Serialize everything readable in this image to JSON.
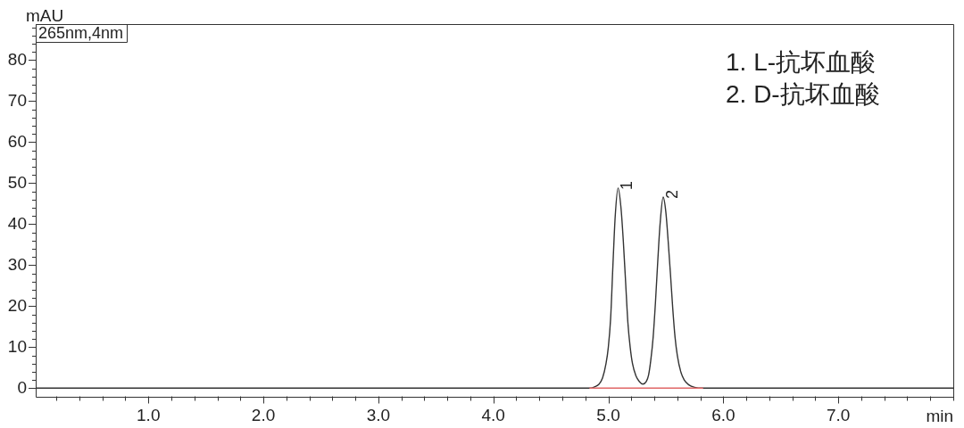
{
  "chart_data": {
    "type": "line",
    "xlabel": "min",
    "ylabel": "mAU",
    "xlim": [
      0.02,
      8.0
    ],
    "ylim": [
      -2,
      88.8
    ],
    "xticks": [
      {
        "value": 0.2,
        "label": null
      },
      {
        "value": 0.4,
        "label": null
      },
      {
        "value": 0.6,
        "label": null
      },
      {
        "value": 0.8,
        "label": null
      },
      {
        "value": 1,
        "label": "1.0"
      },
      {
        "value": 1.2,
        "label": null
      },
      {
        "value": 1.4,
        "label": null
      },
      {
        "value": 1.6,
        "label": null
      },
      {
        "value": 1.8,
        "label": null
      },
      {
        "value": 2,
        "label": "2.0"
      },
      {
        "value": 2.2,
        "label": null
      },
      {
        "value": 2.4,
        "label": null
      },
      {
        "value": 2.6,
        "label": null
      },
      {
        "value": 2.8,
        "label": null
      },
      {
        "value": 3,
        "label": "3.0"
      },
      {
        "value": 3.2,
        "label": null
      },
      {
        "value": 3.4,
        "label": null
      },
      {
        "value": 3.6,
        "label": null
      },
      {
        "value": 3.8,
        "label": null
      },
      {
        "value": 4,
        "label": "4.0"
      },
      {
        "value": 4.2,
        "label": null
      },
      {
        "value": 4.4,
        "label": null
      },
      {
        "value": 4.6,
        "label": null
      },
      {
        "value": 4.8,
        "label": null
      },
      {
        "value": 5,
        "label": "5.0"
      },
      {
        "value": 5.2,
        "label": null
      },
      {
        "value": 5.4,
        "label": null
      },
      {
        "value": 5.6,
        "label": null
      },
      {
        "value": 5.8,
        "label": null
      },
      {
        "value": 6,
        "label": "6.0"
      },
      {
        "value": 6.2,
        "label": null
      },
      {
        "value": 6.4,
        "label": null
      },
      {
        "value": 6.6,
        "label": null
      },
      {
        "value": 6.8,
        "label": null
      },
      {
        "value": 7,
        "label": "7.0"
      },
      {
        "value": 7.2,
        "label": null
      },
      {
        "value": 7.4,
        "label": null
      },
      {
        "value": 7.6,
        "label": null
      },
      {
        "value": 7.8,
        "label": null
      },
      {
        "value": 8,
        "label": null
      }
    ],
    "yticks": [
      0,
      {
        "value": 2,
        "label": null
      },
      {
        "value": 4,
        "label": null
      },
      {
        "value": 6,
        "label": null
      },
      {
        "value": 8,
        "label": null
      },
      10,
      {
        "value": 12,
        "label": null
      },
      {
        "value": 14,
        "label": null
      },
      {
        "value": 16,
        "label": null
      },
      {
        "value": 18,
        "label": null
      },
      20,
      {
        "value": 22,
        "label": null
      },
      {
        "value": 24,
        "label": null
      },
      {
        "value": 26,
        "label": null
      },
      {
        "value": 28,
        "label": null
      },
      30,
      {
        "value": 32,
        "label": null
      },
      {
        "value": 34,
        "label": null
      },
      {
        "value": 36,
        "label": null
      },
      {
        "value": 38,
        "label": null
      },
      40,
      {
        "value": 42,
        "label": null
      },
      {
        "value": 44,
        "label": null
      },
      {
        "value": 46,
        "label": null
      },
      {
        "value": 48,
        "label": null
      },
      50,
      {
        "value": 52,
        "label": null
      },
      {
        "value": 54,
        "label": null
      },
      {
        "value": 56,
        "label": null
      },
      {
        "value": 58,
        "label": null
      },
      60,
      {
        "value": 62,
        "label": null
      },
      {
        "value": 64,
        "label": null
      },
      {
        "value": 66,
        "label": null
      },
      {
        "value": 68,
        "label": null
      },
      70,
      {
        "value": 72,
        "label": null
      },
      {
        "value": 74,
        "label": null
      },
      {
        "value": 76,
        "label": null
      },
      {
        "value": 78,
        "label": null
      },
      80,
      {
        "value": 82,
        "label": null
      },
      {
        "value": 84,
        "label": null
      },
      {
        "value": 86,
        "label": null
      },
      {
        "value": 88,
        "label": null
      }
    ],
    "marker": "none",
    "series": [
      {
        "color": "#333333",
        "x": [
          0.02,
          4.6,
          4.85,
          4.88,
          4.92,
          4.95,
          4.98,
          5.0,
          5.02,
          5.04,
          5.06,
          5.085,
          5.11,
          5.13,
          5.15,
          5.17,
          5.19,
          5.21,
          5.24,
          5.27,
          5.3,
          5.33,
          5.35,
          5.37,
          5.39,
          5.41,
          5.43,
          5.45,
          5.477,
          5.5,
          5.52,
          5.54,
          5.56,
          5.58,
          5.6,
          5.63,
          5.66,
          5.7,
          5.75,
          5.82,
          8.0
        ],
        "values": [
          0,
          0,
          0,
          0.3,
          1,
          2.5,
          6,
          10,
          17,
          30,
          42,
          48.8,
          44,
          36,
          26,
          16,
          10,
          6,
          3,
          1.6,
          1,
          1.6,
          3.2,
          7,
          12.5,
          21,
          31,
          40,
          46.6,
          43,
          36,
          28,
          19.5,
          12.5,
          8,
          4,
          2,
          0.8,
          0.2,
          0,
          0
        ]
      },
      {
        "color": "#e06666",
        "x": [
          4.84,
          5.3,
          5.82
        ],
        "values": [
          0,
          0,
          0
        ]
      }
    ],
    "annotations": [
      {
        "text": "1",
        "x": 5.085,
        "y": 48.8
      },
      {
        "text": "2",
        "x": 5.477,
        "y": 46.6
      },
      "265nm,4nm",
      "1. L-抗坏血酸",
      "2. D-抗坏血酸"
    ]
  }
}
